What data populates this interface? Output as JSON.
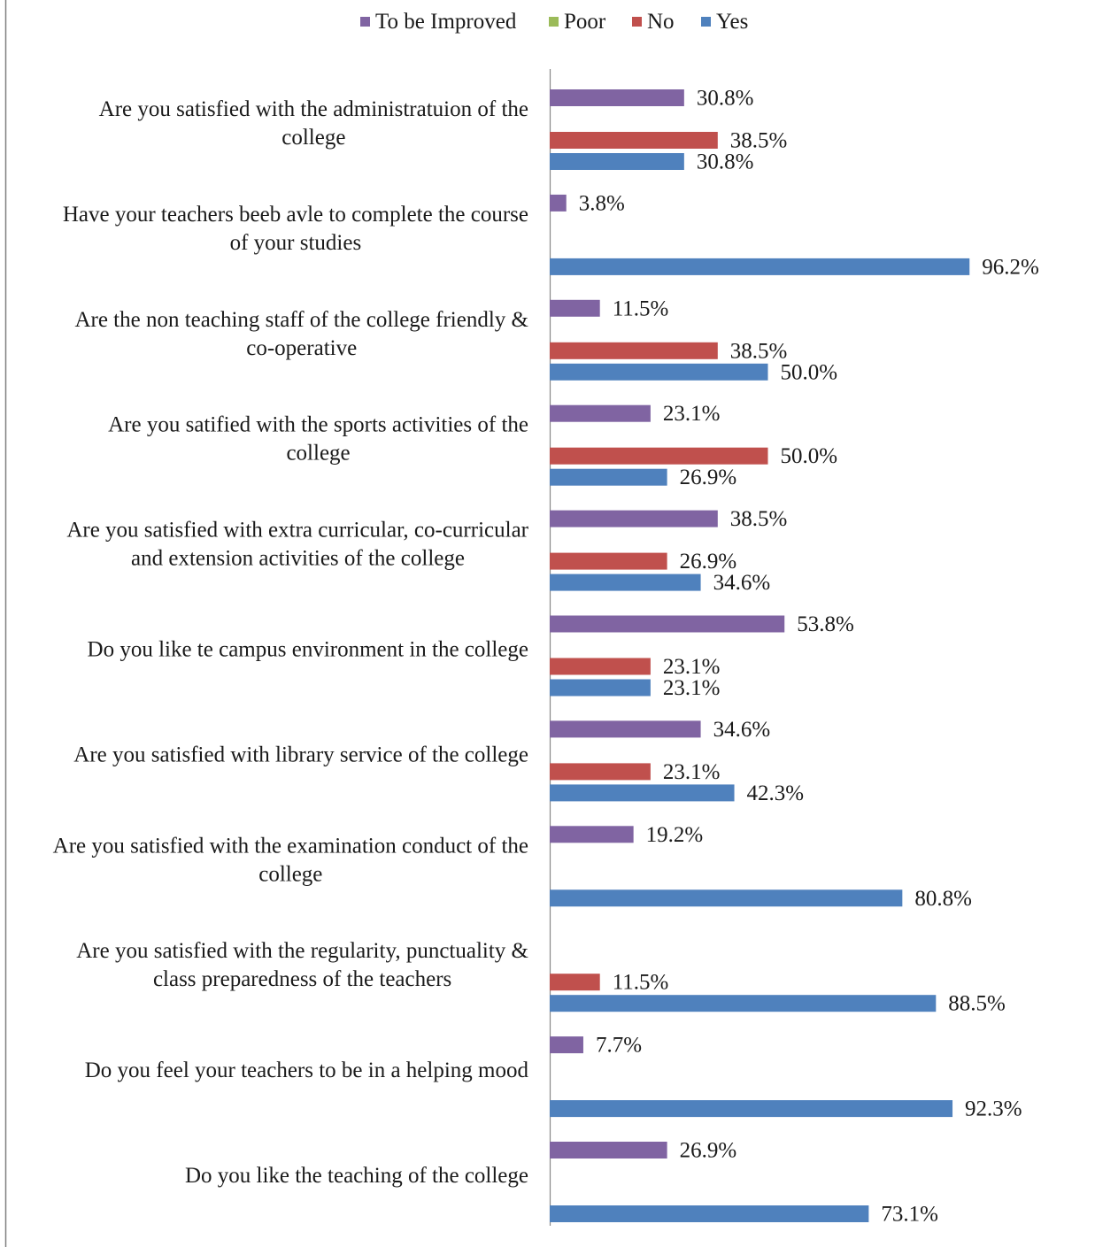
{
  "chart_data": {
    "type": "bar",
    "orientation": "horizontal",
    "title": "",
    "xlabel": "",
    "ylabel": "",
    "xlim": [
      0,
      100
    ],
    "grid": false,
    "legend_position": "top",
    "value_format": "percent_1dp",
    "legend": [
      {
        "name": "To be Improved",
        "color": "#8064A2"
      },
      {
        "name": "Poor",
        "color": "#9BBB59"
      },
      {
        "name": "No",
        "color": "#C0504D"
      },
      {
        "name": "Yes",
        "color": "#4F81BD"
      }
    ],
    "categories": [
      [
        "Are you satisfied with the administratuion of the",
        "college"
      ],
      [
        "Have your teachers beeb avle to complete the course",
        "of your studies"
      ],
      [
        "Are the non teaching staff of the college friendly &",
        "co-operative"
      ],
      [
        "Are you satified with the sports activities of the",
        "college"
      ],
      [
        "Are you satisfied with extra curricular, co-curricular",
        "and extension activities of the college"
      ],
      [
        "Do you like te campus environment in the college"
      ],
      [
        "Are you satisfied with library service of the college"
      ],
      [
        "Are you satisfied with the examination conduct of the",
        "college"
      ],
      [
        "Are you satisfied with the regularity, punctuality &",
        "class preparedness of the teachers"
      ],
      [
        "Do you feel your teachers to be in a helping mood"
      ],
      [
        "Do you like the teaching of the college"
      ]
    ],
    "series": [
      {
        "name": "To be Improved",
        "color": "#8064A2",
        "values": [
          30.8,
          3.8,
          11.5,
          23.1,
          38.5,
          53.8,
          34.6,
          19.2,
          null,
          7.7,
          26.9
        ]
      },
      {
        "name": "Poor",
        "color": "#9BBB59",
        "values": [
          null,
          null,
          null,
          null,
          null,
          null,
          null,
          null,
          null,
          null,
          null
        ]
      },
      {
        "name": "No",
        "color": "#C0504D",
        "values": [
          38.5,
          null,
          38.5,
          50.0,
          26.9,
          23.1,
          23.1,
          null,
          11.5,
          null,
          null
        ]
      },
      {
        "name": "Yes",
        "color": "#4F81BD",
        "values": [
          30.8,
          96.2,
          50.0,
          26.9,
          34.6,
          23.1,
          42.3,
          80.8,
          88.5,
          92.3,
          73.1
        ]
      }
    ]
  }
}
